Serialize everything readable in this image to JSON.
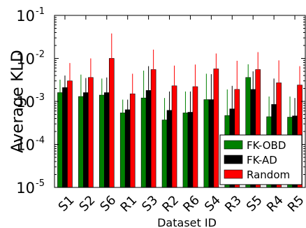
{
  "chart_data": {
    "type": "bar",
    "title": "",
    "xlabel": "Dataset ID",
    "ylabel": "Average KLD",
    "yscale": "log",
    "ylim": [
      1e-05,
      0.1
    ],
    "yticks": [
      {
        "value": 1e-05,
        "base": "10",
        "exp": "-5"
      },
      {
        "value": 0.0001,
        "base": "10",
        "exp": "-4"
      },
      {
        "value": 0.001,
        "base": "10",
        "exp": "-3"
      },
      {
        "value": 0.01,
        "base": "10",
        "exp": "-2"
      },
      {
        "value": 0.1,
        "base": "10",
        "exp": "-1"
      }
    ],
    "grid": false,
    "legend_position": "bottom-right",
    "categories": [
      "S1",
      "S2",
      "S6",
      "R1",
      "S3",
      "R2",
      "R6",
      "S4",
      "R3",
      "S5",
      "R4",
      "R5"
    ],
    "series": [
      {
        "name": "FK-OBD",
        "color": "#008000",
        "values": [
          0.0016,
          0.0013,
          0.0014,
          0.00054,
          0.0012,
          0.00037,
          0.00054,
          0.0011,
          0.00047,
          0.0036,
          0.00044,
          0.00043
        ],
        "error_upper": [
          0.0032,
          0.0042,
          0.0034,
          0.0011,
          0.0052,
          0.0012,
          0.0017,
          0.0044,
          0.0019,
          0.0073,
          0.0013,
          0.0013
        ]
      },
      {
        "name": "FK-AD",
        "color": "#000000",
        "values": [
          0.0021,
          0.0016,
          0.0016,
          0.00064,
          0.0018,
          0.00062,
          0.00056,
          0.0011,
          0.00067,
          0.0019,
          0.00085,
          0.00046
        ],
        "error_upper": [
          0.004,
          0.0035,
          0.0036,
          0.0011,
          0.0066,
          0.0017,
          0.0017,
          0.0043,
          0.0023,
          0.005,
          0.0034,
          0.0012
        ]
      },
      {
        "name": "Random",
        "color": "#ff0000",
        "values": [
          0.003,
          0.0036,
          0.01,
          0.0015,
          0.0055,
          0.0023,
          0.0022,
          0.0057,
          0.0019,
          0.0055,
          0.0027,
          0.0024
        ],
        "error_upper": [
          0.0078,
          0.01,
          0.038,
          0.0044,
          0.016,
          0.0068,
          0.0072,
          0.013,
          0.0088,
          0.014,
          0.009,
          0.0066
        ]
      }
    ]
  }
}
